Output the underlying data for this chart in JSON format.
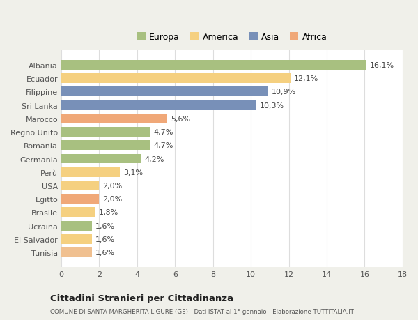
{
  "categories": [
    "Tunisia",
    "El Salvador",
    "Ucraina",
    "Brasile",
    "Egitto",
    "USA",
    "Perù",
    "Germania",
    "Romania",
    "Regno Unito",
    "Marocco",
    "Sri Lanka",
    "Filippine",
    "Ecuador",
    "Albania"
  ],
  "values": [
    1.6,
    1.6,
    1.6,
    1.8,
    2.0,
    2.0,
    3.1,
    4.2,
    4.7,
    4.7,
    5.6,
    10.3,
    10.9,
    12.1,
    16.1
  ],
  "labels": [
    "1,6%",
    "1,6%",
    "1,6%",
    "1,8%",
    "2,0%",
    "2,0%",
    "3,1%",
    "4,2%",
    "4,7%",
    "4,7%",
    "5,6%",
    "10,3%",
    "10,9%",
    "12,1%",
    "16,1%"
  ],
  "colors": [
    "#f0c090",
    "#f5d080",
    "#a8c080",
    "#f5d080",
    "#f0a878",
    "#f5d080",
    "#f5d080",
    "#a8c080",
    "#a8c080",
    "#a8c080",
    "#f0a878",
    "#7890b8",
    "#7890b8",
    "#f5d080",
    "#a8c080"
  ],
  "continent_colors": {
    "Europa": "#a8c080",
    "America": "#f5d080",
    "Asia": "#7890b8",
    "Africa": "#f0a878"
  },
  "xlim": [
    0,
    18
  ],
  "xticks": [
    0,
    2,
    4,
    6,
    8,
    10,
    12,
    14,
    16,
    18
  ],
  "title": "Cittadini Stranieri per Cittadinanza",
  "subtitle": "COMUNE DI SANTA MARGHERITA LIGURE (GE) - Dati ISTAT al 1° gennaio - Elaborazione TUTTITALIA.IT",
  "bg_color": "#f0f0ea",
  "bar_bg_color": "#ffffff",
  "grid_color": "#dddddd",
  "label_fontsize": 8,
  "tick_fontsize": 8,
  "ytick_fontsize": 8
}
